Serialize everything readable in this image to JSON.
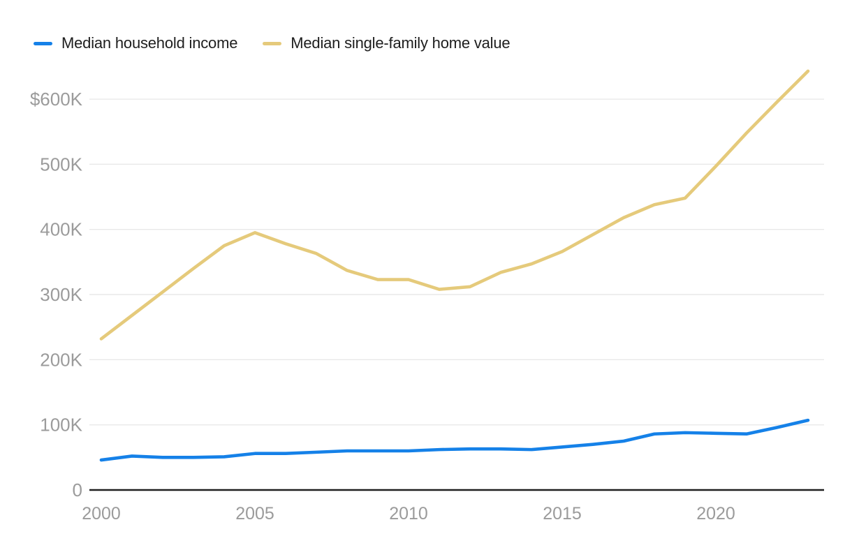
{
  "chart_data": {
    "type": "line",
    "x": [
      2000,
      2001,
      2002,
      2003,
      2004,
      2005,
      2006,
      2007,
      2008,
      2009,
      2010,
      2011,
      2012,
      2013,
      2014,
      2015,
      2016,
      2017,
      2018,
      2019,
      2020,
      2021,
      2022,
      2023
    ],
    "series": [
      {
        "name": "Median household income",
        "color": "#1581e8",
        "values": [
          46,
          52,
          50,
          50,
          51,
          56,
          56,
          58,
          60,
          60,
          60,
          62,
          63,
          63,
          62,
          66,
          70,
          75,
          86,
          88,
          87,
          86,
          96,
          107
        ]
      },
      {
        "name": "Median single-family home value",
        "color": "#e5ca7b",
        "values": [
          232,
          268,
          304,
          340,
          375,
          395,
          378,
          363,
          337,
          323,
          323,
          308,
          312,
          334,
          347,
          366,
          392,
          418,
          438,
          448,
          497,
          548,
          596,
          643
        ]
      }
    ],
    "value_unit": "K",
    "ylim": [
      0,
      650
    ],
    "yticks": [
      {
        "value": 0,
        "label": "0"
      },
      {
        "value": 100,
        "label": "100K"
      },
      {
        "value": 200,
        "label": "200K"
      },
      {
        "value": 300,
        "label": "300K"
      },
      {
        "value": 400,
        "label": "400K"
      },
      {
        "value": 500,
        "label": "500K"
      },
      {
        "value": 600,
        "label": "$600K"
      }
    ],
    "xticks": [
      {
        "value": 2000,
        "label": "2000"
      },
      {
        "value": 2005,
        "label": "2005"
      },
      {
        "value": 2010,
        "label": "2010"
      },
      {
        "value": 2015,
        "label": "2015"
      },
      {
        "value": 2020,
        "label": "2020"
      }
    ],
    "grid": "horizontal",
    "legend_position": "top-left",
    "colors": {
      "axis": "#1f1f1f",
      "gridline": "#e9e9e9",
      "tick_label": "#9b9b9b",
      "legend_text": "#1e1e1e",
      "background": "#ffffff"
    }
  }
}
